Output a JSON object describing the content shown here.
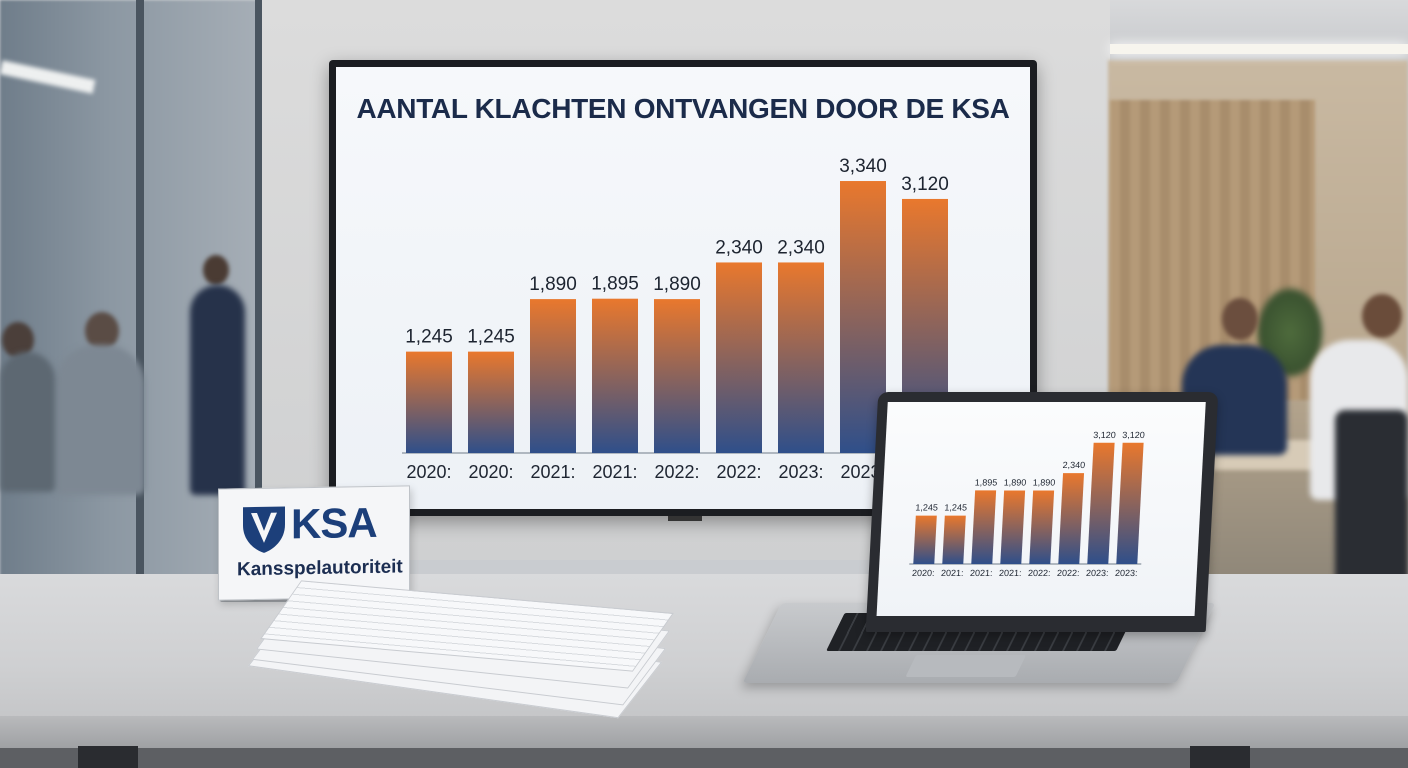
{
  "sign": {
    "brand": "KSA",
    "subtitle": "Kansspelautoriteit"
  },
  "chart_data": [
    {
      "type": "bar",
      "title": "AANTAL KLACHTEN ONTVANGEN DOOR DE KSA",
      "categories": [
        "2020:",
        "2020:",
        "2021:",
        "2021:",
        "2022:",
        "2022:",
        "2023:",
        "2023:",
        ""
      ],
      "values": [
        1245,
        1245,
        1890,
        1895,
        1890,
        2340,
        2340,
        3340,
        3120
      ],
      "data_labels": [
        "1,245",
        "1,245",
        "1,890",
        "1,895",
        "1,890",
        "2,340",
        "2,340",
        "3,340",
        "3,120"
      ],
      "xlabel": "",
      "ylabel": "",
      "ylim": [
        0,
        3500
      ],
      "grid": false,
      "bar_gradient": [
        "#e9782d",
        "#2f4f8a"
      ]
    },
    {
      "type": "bar",
      "title": "",
      "categories": [
        "2020:",
        "2021:",
        "2021:",
        "2021:",
        "2022:",
        "2022:",
        "2023:",
        "2023:"
      ],
      "values": [
        1245,
        1245,
        1895,
        1890,
        1890,
        2340,
        3120,
        3120
      ],
      "data_labels": [
        "1,245",
        "1,245",
        "1,895",
        "1,890",
        "1,890",
        "2,340",
        "3,120",
        "3,120"
      ],
      "xlabel": "",
      "ylabel": "",
      "ylim": [
        0,
        3500
      ],
      "grid": false,
      "bar_gradient": [
        "#e9782d",
        "#2f4f8a"
      ]
    }
  ]
}
